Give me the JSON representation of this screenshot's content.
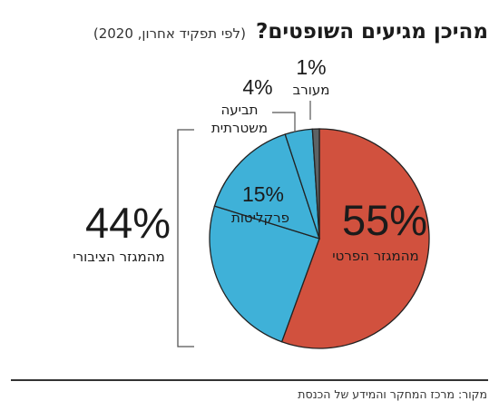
{
  "title": "מהיכן מגיעים השופטים?",
  "subtitle": "(לפי תפקיד אחרון, 2020)",
  "source": "מקור: מרכז המחקר והמידע של הכנסת",
  "colors": {
    "private": "#d1513e",
    "public": "#3fb1d8",
    "police": "#3fb1d8",
    "other": "#5d6265",
    "stroke": "#222222"
  },
  "chart_data": {
    "type": "pie",
    "title": "מהיכן מגיעים השופטים?",
    "subtitle": "(לפי תפקיד אחרון, 2020)",
    "slices": [
      {
        "label": "מהמגזר הפרטי",
        "value": 55,
        "display": "55%",
        "color": "#d1513e"
      },
      {
        "label": "מהמגזר הציבורי",
        "value": 24,
        "display": "",
        "color": "#3fb1d8"
      },
      {
        "label": "פרקליטות",
        "value": 15,
        "display": "15%",
        "color": "#3fb1d8"
      },
      {
        "label": "תביעה משטרתית",
        "value": 4,
        "display": "4%",
        "color": "#3fb1d8"
      },
      {
        "label": "מעורב",
        "value": 1,
        "display": "1%",
        "color": "#5d6265"
      }
    ],
    "group": {
      "label": "מהמגזר הציבורי",
      "display": "44%"
    }
  }
}
